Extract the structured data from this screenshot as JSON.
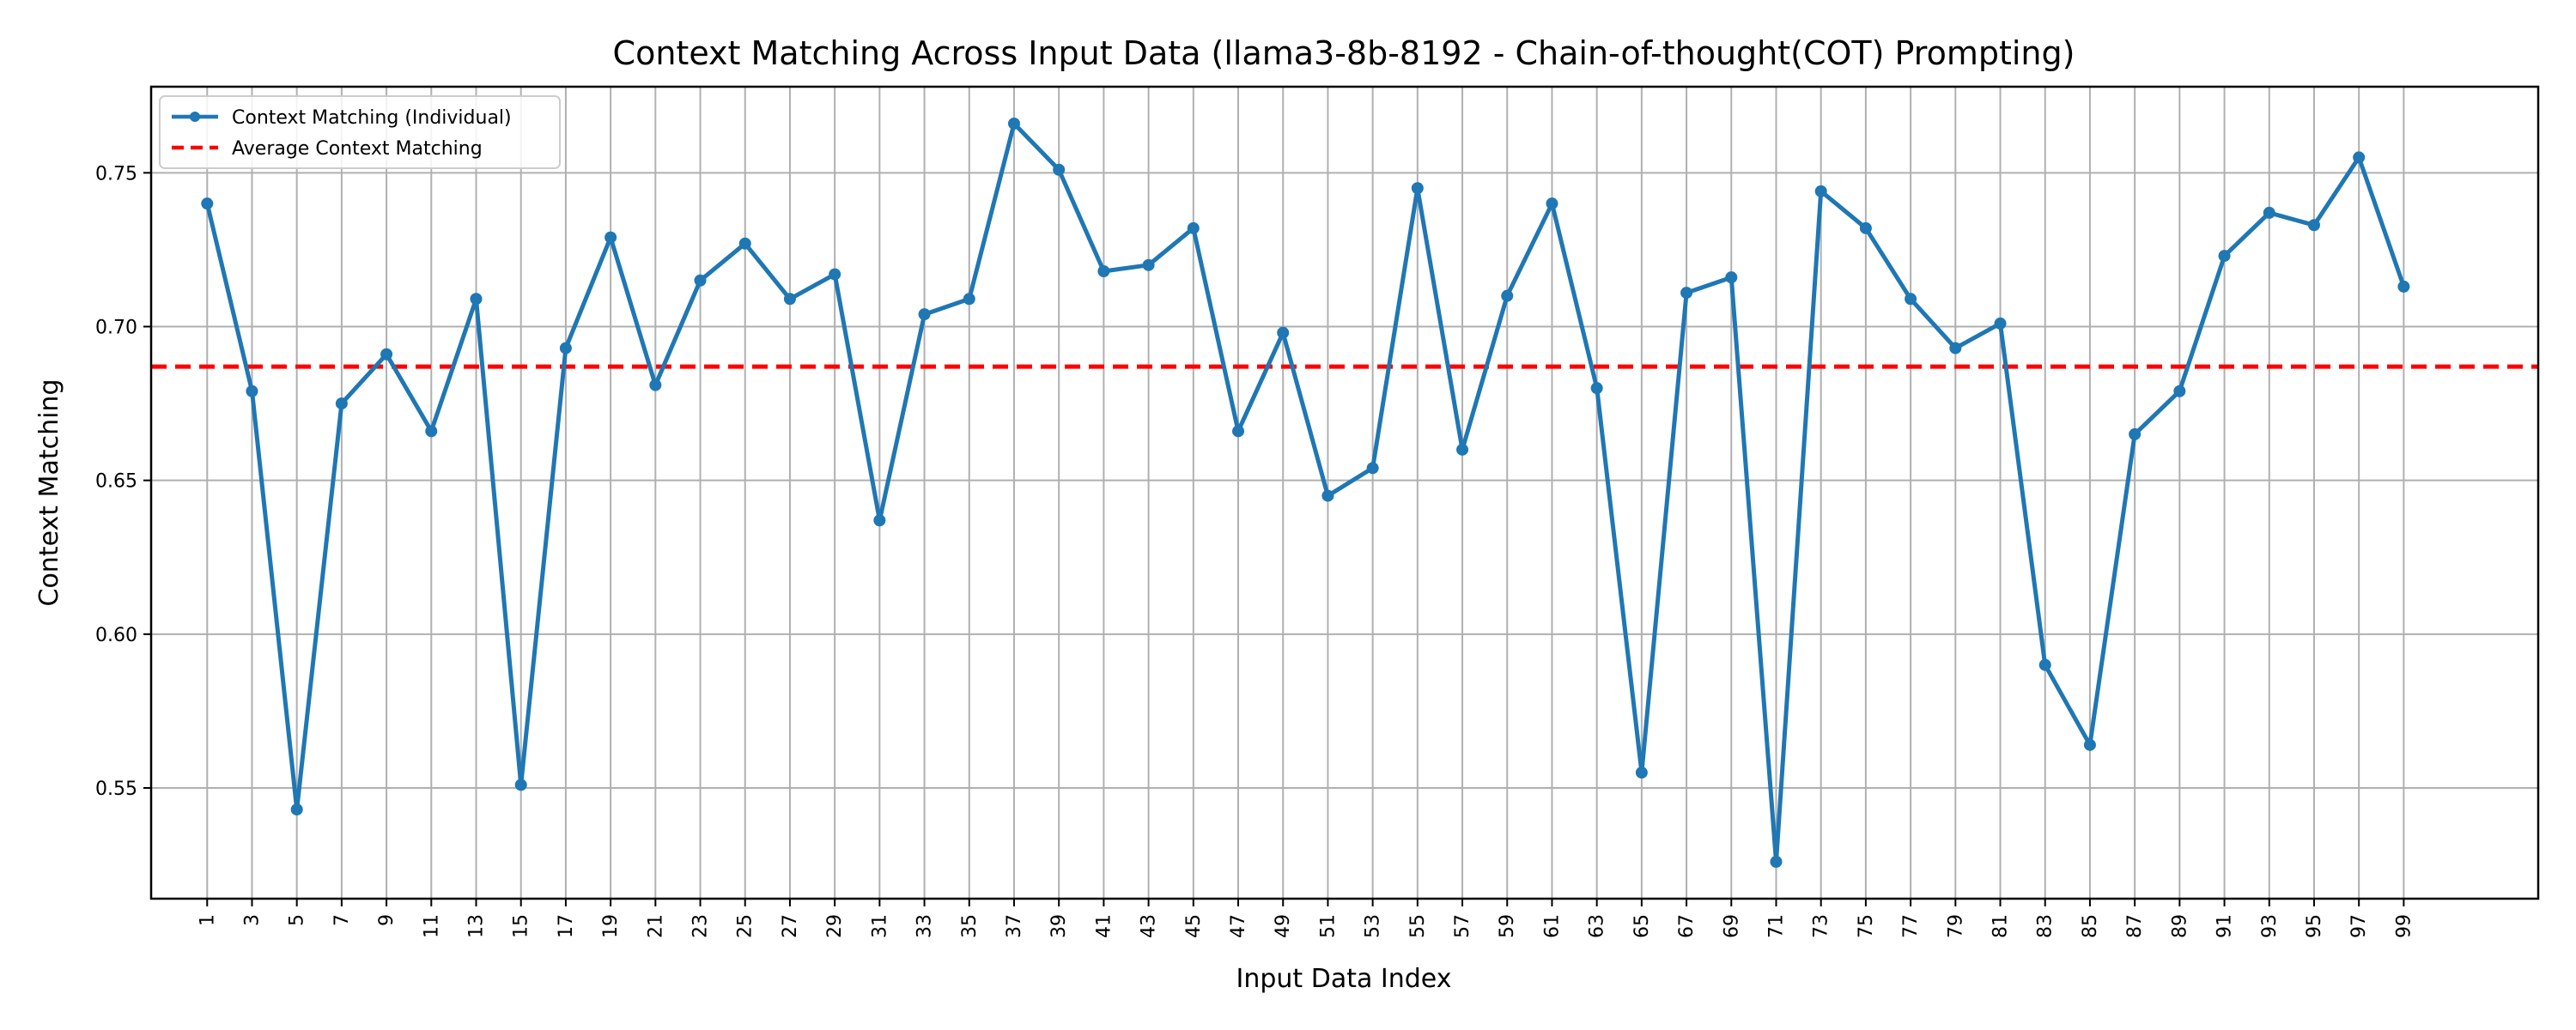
{
  "chart_data": {
    "type": "line",
    "title": "Context Matching Across Input Data (llama3-8b-8192 - Chain-of-thought(COT) Prompting)",
    "xlabel": "Input Data Index",
    "ylabel": "Context Matching",
    "grid": true,
    "legend_position": "top-left",
    "ylim": [
      0.514,
      0.778
    ],
    "y_ticks": [
      0.55,
      0.6,
      0.65,
      0.7,
      0.75
    ],
    "y_tick_labels": [
      "0.55",
      "0.60",
      "0.65",
      "0.70",
      "0.75"
    ],
    "x_ticks": [
      1,
      3,
      5,
      7,
      9,
      11,
      13,
      15,
      17,
      19,
      21,
      23,
      25,
      27,
      29,
      31,
      33,
      35,
      37,
      39,
      41,
      43,
      45,
      47,
      49,
      51,
      53,
      55,
      57,
      59,
      61,
      63,
      65,
      67,
      69,
      71,
      73,
      75,
      77,
      79,
      81,
      83,
      85,
      87,
      89,
      91,
      93,
      95,
      97,
      99
    ],
    "x_tick_labels": [
      "1",
      "3",
      "5",
      "7",
      "9",
      "11",
      "13",
      "15",
      "17",
      "19",
      "21",
      "23",
      "25",
      "27",
      "29",
      "31",
      "33",
      "35",
      "37",
      "39",
      "41",
      "43",
      "45",
      "47",
      "49",
      "51",
      "53",
      "55",
      "57",
      "59",
      "61",
      "63",
      "65",
      "67",
      "69",
      "71",
      "73",
      "75",
      "77",
      "79",
      "81",
      "83",
      "85",
      "87",
      "89",
      "91",
      "93",
      "95",
      "97",
      "99"
    ],
    "series": [
      {
        "name": "Context Matching (Individual)",
        "color": "#1f77b4",
        "style": "solid-line-with-markers",
        "x": [
          1,
          3,
          5,
          7,
          9,
          11,
          13,
          15,
          17,
          19,
          21,
          23,
          25,
          27,
          29,
          31,
          33,
          35,
          37,
          39,
          41,
          43,
          45,
          47,
          49,
          51,
          53,
          55,
          57,
          59,
          61,
          63,
          65,
          67,
          69,
          71,
          73,
          75,
          77,
          79,
          81,
          83,
          85,
          87,
          89,
          91,
          93,
          95,
          97,
          99
        ],
        "values": [
          0.74,
          0.679,
          0.543,
          0.675,
          0.691,
          0.666,
          0.709,
          0.551,
          0.693,
          0.729,
          0.681,
          0.715,
          0.727,
          0.709,
          0.717,
          0.637,
          0.704,
          0.709,
          0.766,
          0.751,
          0.718,
          0.72,
          0.732,
          0.666,
          0.698,
          0.645,
          0.654,
          0.745,
          0.66,
          0.71,
          0.74,
          0.68,
          0.555,
          0.711,
          0.716,
          0.526,
          0.744,
          0.732,
          0.709,
          0.693,
          0.701,
          0.59,
          0.564,
          0.665,
          0.679,
          0.723,
          0.737,
          0.733,
          0.755,
          0.713
        ]
      },
      {
        "name": "Average Context Matching",
        "color": "#ff0000",
        "style": "dashed",
        "value": 0.687
      }
    ]
  }
}
